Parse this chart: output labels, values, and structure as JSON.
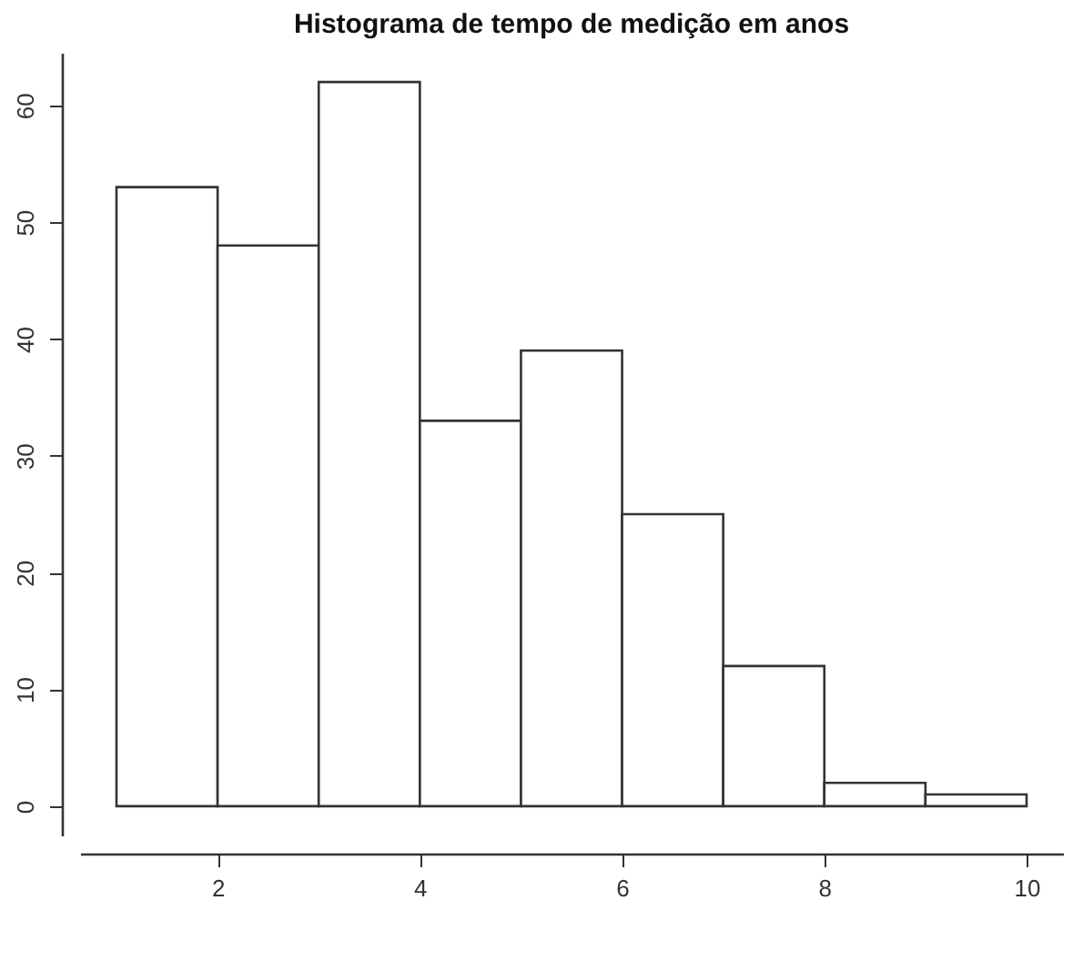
{
  "chart_data": {
    "type": "histogram",
    "title": "Histograma de tempo de medição em anos",
    "bins": [
      1,
      2,
      3,
      4,
      5,
      6,
      7,
      8,
      9,
      10
    ],
    "values": [
      53,
      48,
      62,
      33,
      39,
      25,
      12,
      2,
      1
    ],
    "color": "#ffffff",
    "xlim": [
      0.64,
      10.36
    ],
    "xticks": [
      2,
      4,
      6,
      8,
      10
    ],
    "ylim": [
      -2.5,
      64.5
    ],
    "yticks": [
      0,
      10,
      20,
      30,
      40,
      50,
      60
    ],
    "grid": false
  }
}
